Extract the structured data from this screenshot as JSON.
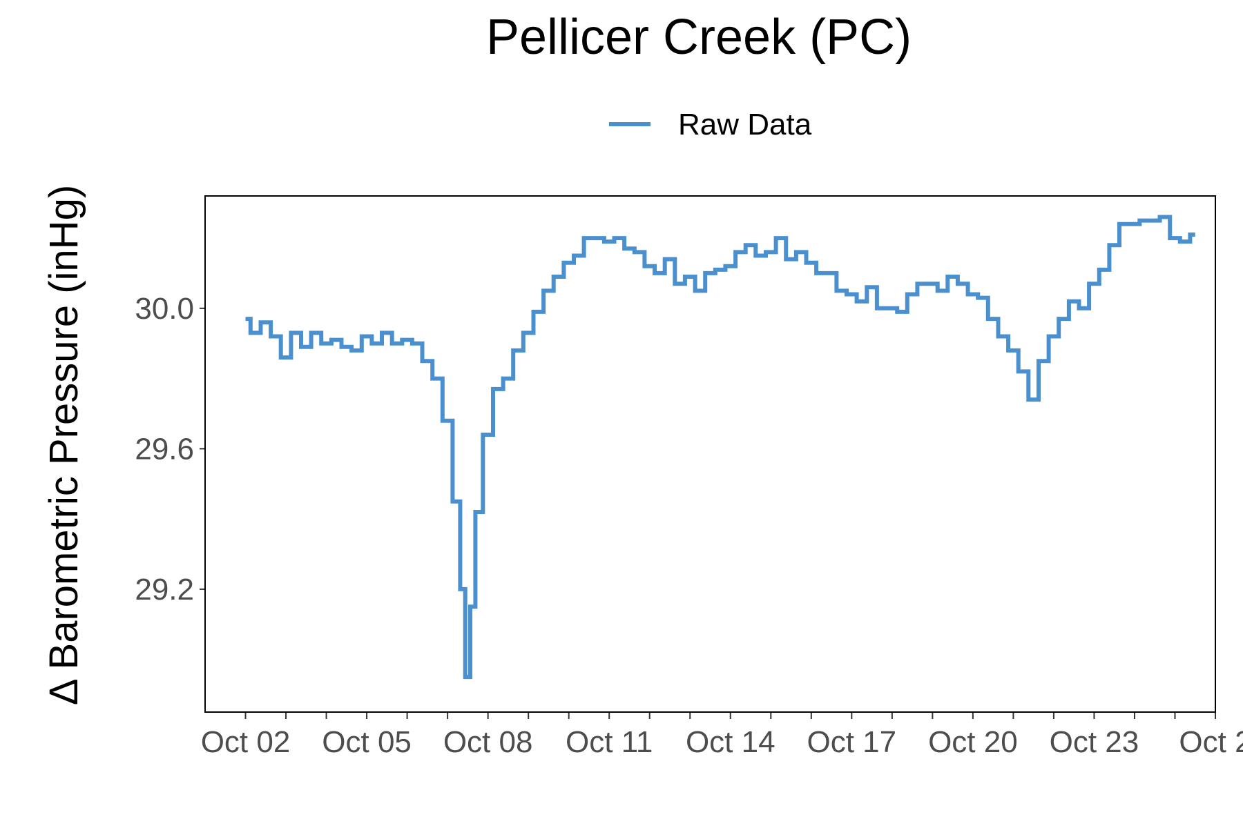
{
  "chart_data": {
    "type": "line",
    "title": "Pellicer Creek (PC)",
    "xlabel": "",
    "ylabel": "Δ Barometric Pressure (inHg)",
    "x_tick_labels": [
      "Oct 02",
      "Oct 05",
      "Oct 08",
      "Oct 11",
      "Oct 14",
      "Oct 17",
      "Oct 20",
      "Oct 23",
      "Oct 2"
    ],
    "x_tick_values": [
      "2023-10-02",
      "2023-10-05",
      "2023-10-08",
      "2023-10-11",
      "2023-10-14",
      "2023-10-17",
      "2023-10-20",
      "2023-10-23",
      "2023-10-26"
    ],
    "xlim": [
      "2023-10-01T00:00",
      "2023-10-26T00:00"
    ],
    "y_ticks": [
      29.2,
      29.6,
      30.0
    ],
    "y_tick_labels": [
      "29.2",
      "29.6",
      "30.0"
    ],
    "ylim": [
      28.85,
      30.32
    ],
    "grid": false,
    "legend": {
      "position": "top",
      "entries": [
        "Raw Data"
      ]
    },
    "series": [
      {
        "name": "Raw Data",
        "color": "#4a90cf",
        "x": [
          "2023-10-02T00:00",
          "2023-10-02T06:00",
          "2023-10-02T12:00",
          "2023-10-02T18:00",
          "2023-10-03T00:00",
          "2023-10-03T06:00",
          "2023-10-03T12:00",
          "2023-10-03T18:00",
          "2023-10-04T00:00",
          "2023-10-04T06:00",
          "2023-10-04T12:00",
          "2023-10-04T18:00",
          "2023-10-05T00:00",
          "2023-10-05T06:00",
          "2023-10-05T12:00",
          "2023-10-05T18:00",
          "2023-10-06T00:00",
          "2023-10-06T06:00",
          "2023-10-06T12:00",
          "2023-10-06T18:00",
          "2023-10-07T00:00",
          "2023-10-07T06:00",
          "2023-10-07T09:00",
          "2023-10-07T12:00",
          "2023-10-07T15:00",
          "2023-10-07T18:00",
          "2023-10-08T00:00",
          "2023-10-08T06:00",
          "2023-10-08T12:00",
          "2023-10-08T18:00",
          "2023-10-09T00:00",
          "2023-10-09T06:00",
          "2023-10-09T12:00",
          "2023-10-09T18:00",
          "2023-10-10T00:00",
          "2023-10-10T06:00",
          "2023-10-10T12:00",
          "2023-10-10T18:00",
          "2023-10-11T00:00",
          "2023-10-11T06:00",
          "2023-10-11T12:00",
          "2023-10-11T18:00",
          "2023-10-12T00:00",
          "2023-10-12T06:00",
          "2023-10-12T12:00",
          "2023-10-12T18:00",
          "2023-10-13T00:00",
          "2023-10-13T06:00",
          "2023-10-13T12:00",
          "2023-10-13T18:00",
          "2023-10-14T00:00",
          "2023-10-14T06:00",
          "2023-10-14T12:00",
          "2023-10-14T18:00",
          "2023-10-15T00:00",
          "2023-10-15T06:00",
          "2023-10-15T12:00",
          "2023-10-15T18:00",
          "2023-10-16T00:00",
          "2023-10-16T06:00",
          "2023-10-16T12:00",
          "2023-10-16T18:00",
          "2023-10-17T00:00",
          "2023-10-17T06:00",
          "2023-10-17T12:00",
          "2023-10-17T18:00",
          "2023-10-18T00:00",
          "2023-10-18T06:00",
          "2023-10-18T12:00",
          "2023-10-18T18:00",
          "2023-10-19T00:00",
          "2023-10-19T06:00",
          "2023-10-19T12:00",
          "2023-10-19T18:00",
          "2023-10-20T00:00",
          "2023-10-20T06:00",
          "2023-10-20T12:00",
          "2023-10-20T18:00",
          "2023-10-21T00:00",
          "2023-10-21T06:00",
          "2023-10-21T12:00",
          "2023-10-21T18:00",
          "2023-10-22T00:00",
          "2023-10-22T06:00",
          "2023-10-22T12:00",
          "2023-10-22T18:00",
          "2023-10-23T00:00",
          "2023-10-23T06:00",
          "2023-10-23T12:00",
          "2023-10-23T18:00",
          "2023-10-24T00:00",
          "2023-10-24T06:00",
          "2023-10-24T12:00",
          "2023-10-24T18:00",
          "2023-10-25T00:00",
          "2023-10-25T06:00",
          "2023-10-25T12:00"
        ],
        "values": [
          29.97,
          29.93,
          29.96,
          29.92,
          29.86,
          29.93,
          29.89,
          29.93,
          29.9,
          29.91,
          29.89,
          29.88,
          29.92,
          29.9,
          29.93,
          29.9,
          29.91,
          29.9,
          29.85,
          29.8,
          29.68,
          29.45,
          29.2,
          28.95,
          29.15,
          29.42,
          29.64,
          29.77,
          29.8,
          29.88,
          29.93,
          29.99,
          30.05,
          30.09,
          30.13,
          30.15,
          30.2,
          30.2,
          30.19,
          30.2,
          30.17,
          30.16,
          30.12,
          30.1,
          30.14,
          30.07,
          30.09,
          30.05,
          30.1,
          30.11,
          30.12,
          30.16,
          30.18,
          30.15,
          30.16,
          30.2,
          30.14,
          30.16,
          30.13,
          30.1,
          30.1,
          30.05,
          30.04,
          30.02,
          30.06,
          30.0,
          30.0,
          29.99,
          30.04,
          30.07,
          30.07,
          30.05,
          30.09,
          30.07,
          30.04,
          30.03,
          29.97,
          29.92,
          29.88,
          29.82,
          29.74,
          29.85,
          29.92,
          29.97,
          30.02,
          30.0,
          30.07,
          30.11,
          30.18,
          30.24,
          30.24,
          30.25,
          30.25,
          30.26,
          30.2,
          30.19,
          30.21
        ]
      }
    ]
  }
}
